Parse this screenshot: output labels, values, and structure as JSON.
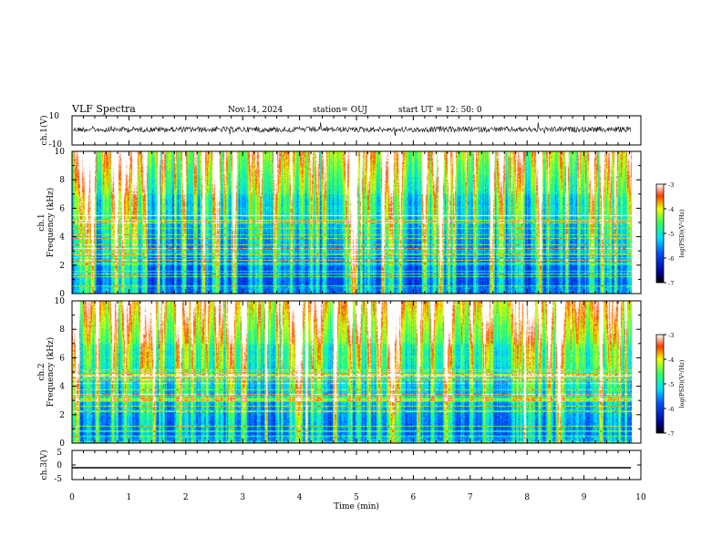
{
  "header": {
    "title": "VLF Spectra",
    "date": "Nov.14, 2024",
    "station": "station= OUJ",
    "start": "start  UT  =   12: 50: 0"
  },
  "chart_data": [
    {
      "type": "line",
      "ylabel": "ch.1(V)",
      "xlim": [
        0,
        10
      ],
      "ylim": [
        -10,
        10
      ],
      "yticks": [
        "10",
        "-10"
      ],
      "series": [
        {
          "values_summary": "noisy waveform centered near 0 V with occasional spikes"
        }
      ]
    },
    {
      "type": "heatmap",
      "ylabel_top": "ch.1",
      "ylabel": "Frequency  (kHz)",
      "xlim": [
        0,
        10
      ],
      "ylim": [
        0,
        10
      ],
      "yticks": [
        "0",
        "2",
        "4",
        "6",
        "8",
        "10"
      ],
      "colorbar": {
        "label": "log(PSD)(V²/Hz)",
        "ticks": [
          "-3",
          "-4",
          "-5",
          "-6",
          "-7"
        ],
        "range": [
          -7,
          -3
        ]
      }
    },
    {
      "type": "heatmap",
      "ylabel_top": "ch.2",
      "ylabel": "Frequency  (kHz)",
      "xlim": [
        0,
        10
      ],
      "ylim": [
        0,
        10
      ],
      "yticks": [
        "0",
        "2",
        "4",
        "6",
        "8",
        "10"
      ],
      "colorbar": {
        "label": "log(PSD)(V²/Hz)",
        "ticks": [
          "-3",
          "-4",
          "-5",
          "-6",
          "-7"
        ],
        "range": [
          -7,
          -3
        ]
      }
    },
    {
      "type": "line",
      "ylabel": "ch.3(V)",
      "xlim": [
        0,
        10
      ],
      "ylim": [
        -5,
        5
      ],
      "yticks": [
        "5",
        "0",
        "-5"
      ],
      "series": [
        {
          "values_summary": "flat line near -2 V"
        }
      ]
    }
  ],
  "xaxis": {
    "label": "Time  (min)",
    "ticks": [
      "0",
      "1",
      "2",
      "3",
      "4",
      "5",
      "6",
      "7",
      "8",
      "9",
      "10"
    ]
  }
}
